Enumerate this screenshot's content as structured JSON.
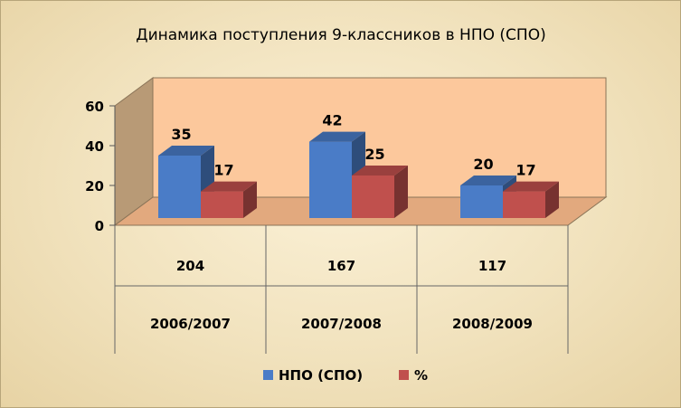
{
  "chart_data": {
    "type": "bar",
    "title": "Динамика поступления 9-классников в НПО (СПО)",
    "categories": [
      "2006/2007",
      "2007/2008",
      "2008/2009"
    ],
    "table_row": [
      "204",
      "167",
      "117"
    ],
    "series": [
      {
        "name": "НПО (СПО)",
        "values": [
          35,
          42,
          20
        ],
        "color": "#4a7cc7"
      },
      {
        "name": "%",
        "values": [
          17,
          25,
          17
        ],
        "color": "#c0504d"
      }
    ],
    "ylim": [
      0,
      60
    ],
    "yticks": [
      0,
      20,
      40,
      60
    ],
    "grid": false,
    "legend": "bottom",
    "wall_color": "#fcc89c",
    "floor_color": "#e2a97e"
  }
}
